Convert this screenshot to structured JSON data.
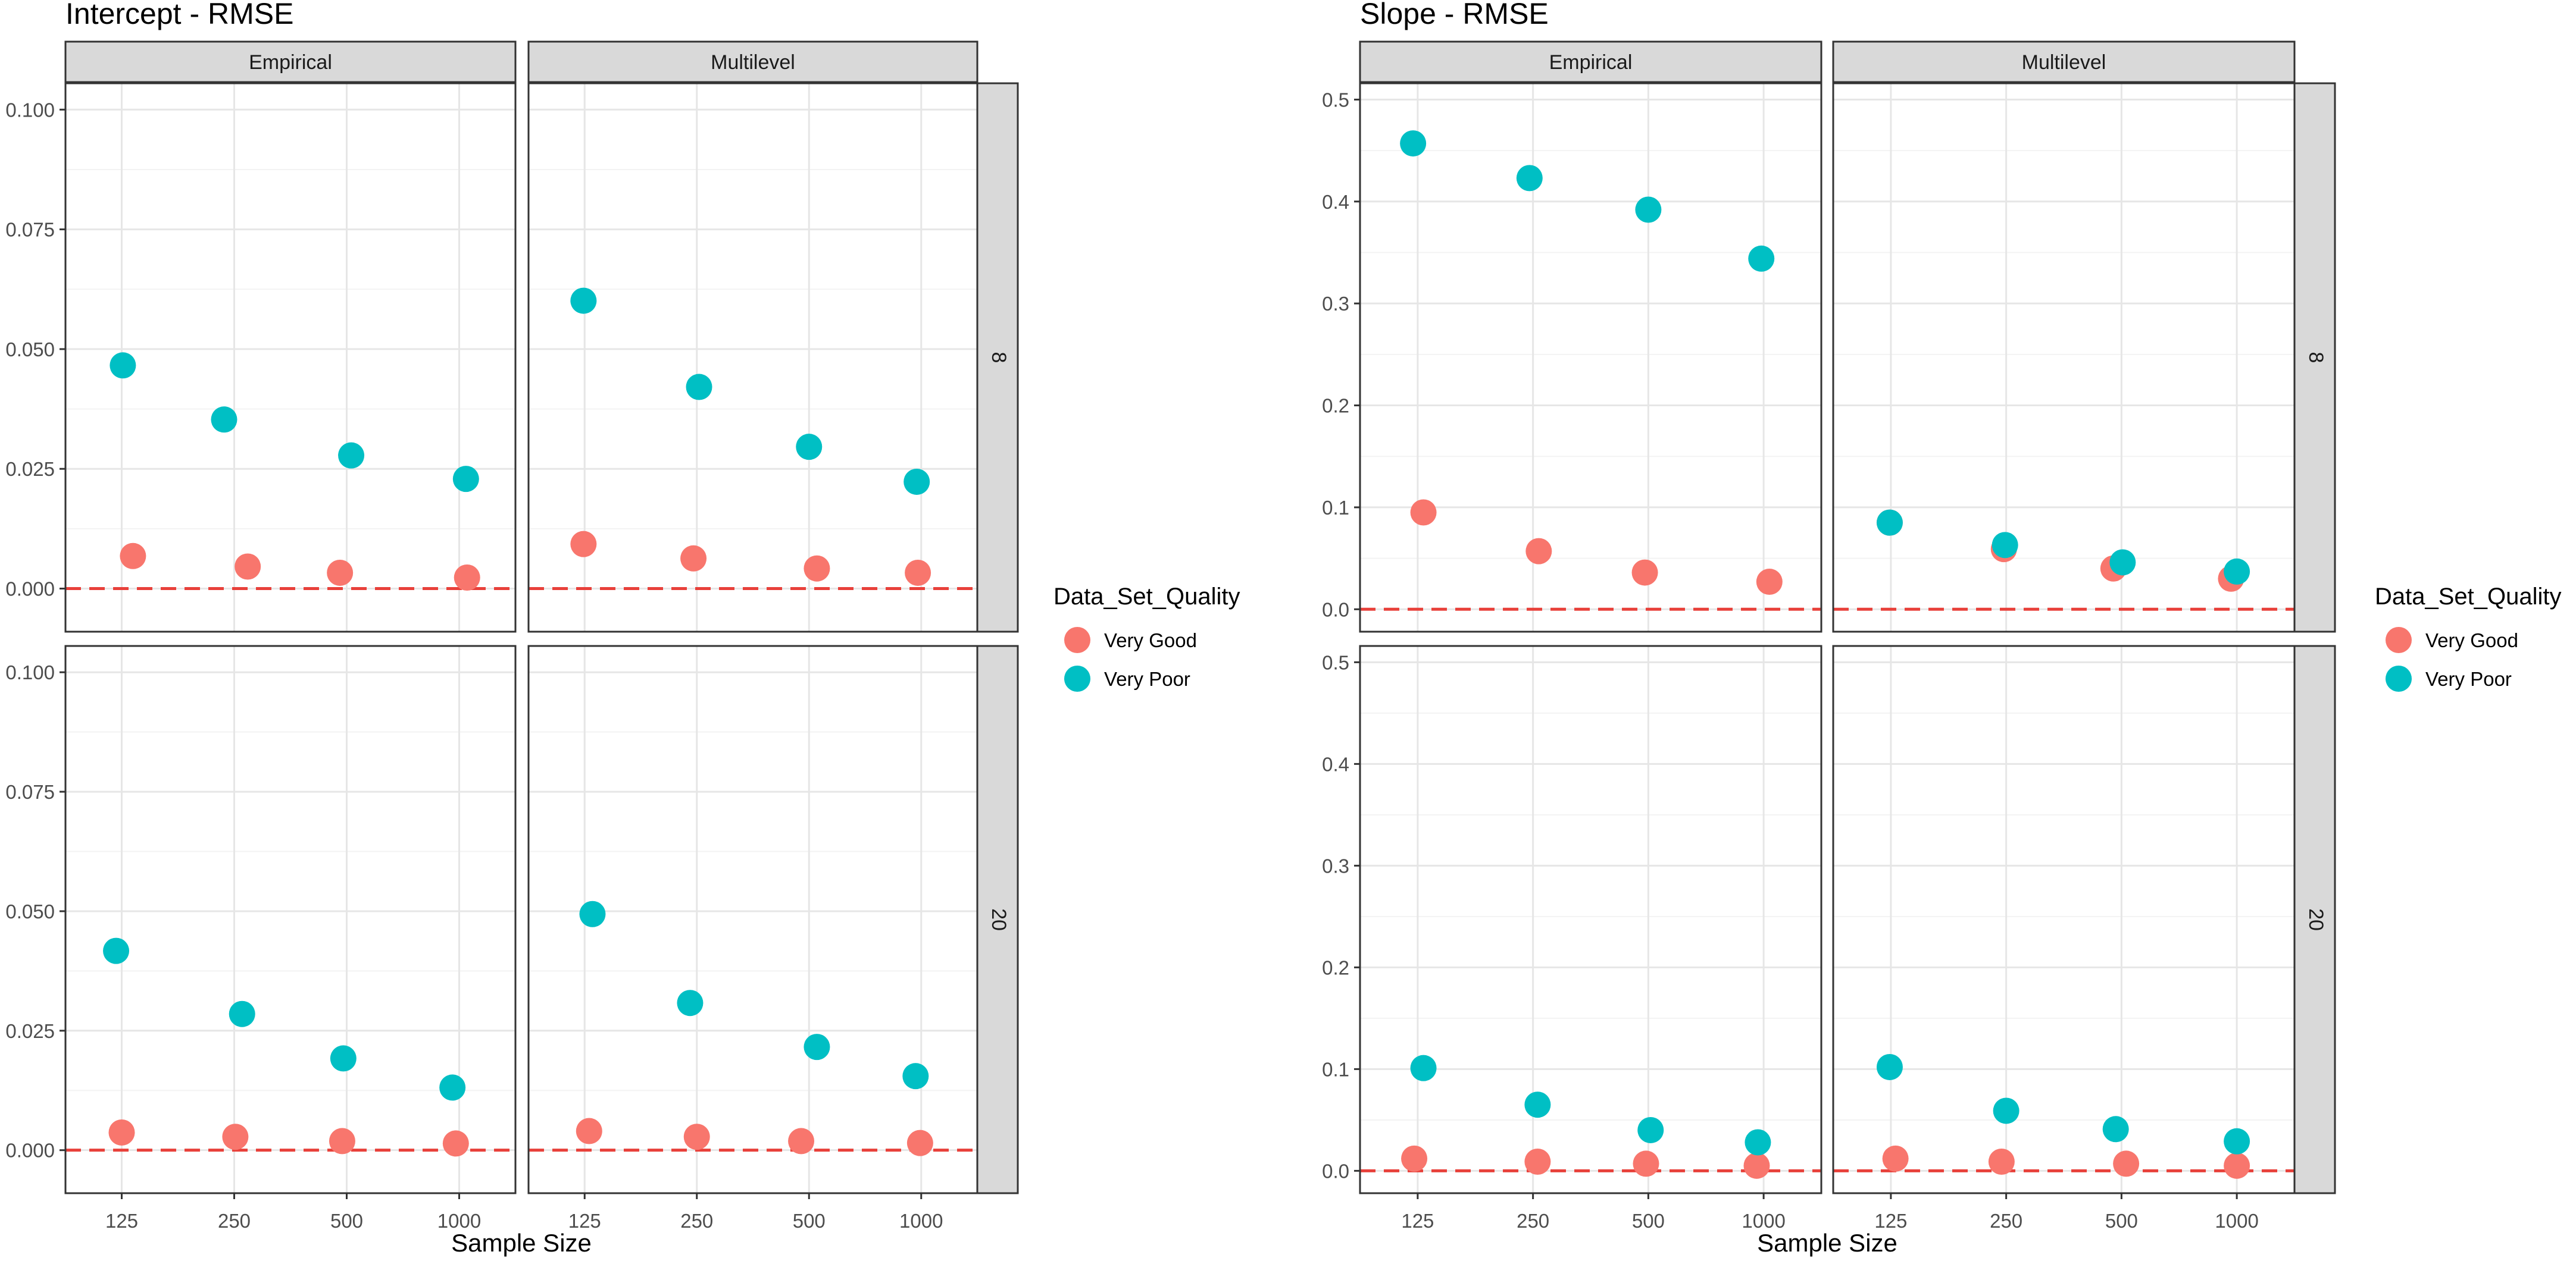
{
  "colors": {
    "very_good": "#F8766D",
    "very_poor": "#00BFC4",
    "zero_line": "#E8403A",
    "strip_bg": "#D9D9D9",
    "grid_major": "#E6E6E6",
    "grid_minor": "#F3F3F3",
    "panel_border": "#333333",
    "text": "#000000",
    "tick_text": "#4D4D4D"
  },
  "chart_data": [
    {
      "type": "scatter",
      "title": "Intercept - RMSE",
      "xlabel": "Sample Size",
      "ylabel": "",
      "categories": [
        "125",
        "250",
        "500",
        "1000"
      ],
      "facet_cols": [
        "Empirical",
        "Multilevel"
      ],
      "facet_rows": [
        "8",
        "20"
      ],
      "ylim": [
        -0.009,
        0.1055
      ],
      "yticks": [
        0.0,
        0.025,
        0.05,
        0.075,
        0.1
      ],
      "ytick_labels": [
        "0.000",
        "0.025",
        "0.050",
        "0.075",
        "0.100"
      ],
      "reference_line_y": 0,
      "legend": {
        "title": "Data_Set_Quality",
        "entries": [
          "Very Good",
          "Very Poor"
        ],
        "position": "right"
      },
      "panels": [
        {
          "col": "Empirical",
          "row": "8",
          "series": [
            {
              "name": "Very Good",
              "values": [
                0.0068,
                0.0046,
                0.0033,
                0.0023
              ],
              "x_jitter": [
                0.1,
                0.12,
                -0.06,
                0.07
              ]
            },
            {
              "name": "Very Poor",
              "values": [
                0.0466,
                0.0353,
                0.0278,
                0.0229
              ],
              "x_jitter": [
                0.01,
                -0.09,
                0.04,
                0.06
              ]
            }
          ]
        },
        {
          "col": "Multilevel",
          "row": "8",
          "series": [
            {
              "name": "Very Good",
              "values": [
                0.0093,
                0.0063,
                0.0042,
                0.0033
              ],
              "x_jitter": [
                -0.01,
                -0.03,
                0.07,
                -0.03
              ]
            },
            {
              "name": "Very Poor",
              "values": [
                0.0601,
                0.0421,
                0.0296,
                0.0223
              ],
              "x_jitter": [
                -0.01,
                0.02,
                0.0,
                -0.04
              ]
            }
          ]
        },
        {
          "col": "Empirical",
          "row": "20",
          "series": [
            {
              "name": "Very Good",
              "values": [
                0.0037,
                0.0028,
                0.0019,
                0.0014
              ],
              "x_jitter": [
                0.0,
                0.01,
                -0.04,
                -0.03
              ]
            },
            {
              "name": "Very Poor",
              "values": [
                0.0417,
                0.0285,
                0.0192,
                0.0131
              ],
              "x_jitter": [
                -0.05,
                0.07,
                -0.03,
                -0.06
              ]
            }
          ]
        },
        {
          "col": "Multilevel",
          "row": "20",
          "series": [
            {
              "name": "Very Good",
              "values": [
                0.004,
                0.0028,
                0.0019,
                0.0015
              ],
              "x_jitter": [
                0.04,
                0.0,
                -0.07,
                -0.01
              ]
            },
            {
              "name": "Very Poor",
              "values": [
                0.0494,
                0.0308,
                0.0216,
                0.0155
              ],
              "x_jitter": [
                0.07,
                -0.06,
                0.07,
                -0.05
              ]
            }
          ]
        }
      ]
    },
    {
      "type": "scatter",
      "title": "Slope - RMSE",
      "xlabel": "Sample Size",
      "ylabel": "",
      "categories": [
        "125",
        "250",
        "500",
        "1000"
      ],
      "facet_cols": [
        "Empirical",
        "Multilevel"
      ],
      "facet_rows": [
        "8",
        "20"
      ],
      "ylim": [
        -0.022,
        0.516
      ],
      "yticks": [
        0.0,
        0.1,
        0.2,
        0.3,
        0.4,
        0.5
      ],
      "ytick_labels": [
        "0.0",
        "0.1",
        "0.2",
        "0.3",
        "0.4",
        "0.5"
      ],
      "reference_line_y": 0,
      "legend": {
        "title": "Data_Set_Quality",
        "entries": [
          "Very Good",
          "Very Poor"
        ],
        "position": "right"
      },
      "panels": [
        {
          "col": "Empirical",
          "row": "8",
          "series": [
            {
              "name": "Very Good",
              "values": [
                0.095,
                0.057,
                0.036,
                0.027
              ],
              "x_jitter": [
                0.05,
                0.05,
                -0.03,
                0.05
              ]
            },
            {
              "name": "Very Poor",
              "values": [
                0.457,
                0.423,
                0.392,
                0.344
              ],
              "x_jitter": [
                -0.04,
                -0.03,
                0.0,
                -0.02
              ]
            }
          ]
        },
        {
          "col": "Multilevel",
          "row": "8",
          "series": [
            {
              "name": "Very Good",
              "values": [
                0.085,
                0.059,
                0.04,
                0.03
              ],
              "x_jitter": [
                -0.01,
                -0.02,
                -0.07,
                -0.05
              ]
            },
            {
              "name": "Very Poor",
              "values": [
                0.085,
                0.063,
                0.046,
                0.037
              ],
              "x_jitter": [
                -0.01,
                -0.01,
                0.01,
                0.0
              ]
            }
          ]
        },
        {
          "col": "Empirical",
          "row": "20",
          "series": [
            {
              "name": "Very Good",
              "values": [
                0.012,
                0.009,
                0.007,
                0.005
              ],
              "x_jitter": [
                -0.03,
                0.04,
                -0.02,
                -0.06
              ]
            },
            {
              "name": "Very Poor",
              "values": [
                0.101,
                0.065,
                0.04,
                0.028
              ],
              "x_jitter": [
                0.05,
                0.04,
                0.02,
                -0.05
              ]
            }
          ]
        },
        {
          "col": "Multilevel",
          "row": "20",
          "series": [
            {
              "name": "Very Good",
              "values": [
                0.012,
                0.009,
                0.007,
                0.005
              ],
              "x_jitter": [
                0.04,
                -0.04,
                0.04,
                0.0
              ]
            },
            {
              "name": "Very Poor",
              "values": [
                0.102,
                0.059,
                0.041,
                0.029
              ],
              "x_jitter": [
                -0.01,
                0.0,
                -0.05,
                0.0
              ]
            }
          ]
        }
      ]
    }
  ]
}
